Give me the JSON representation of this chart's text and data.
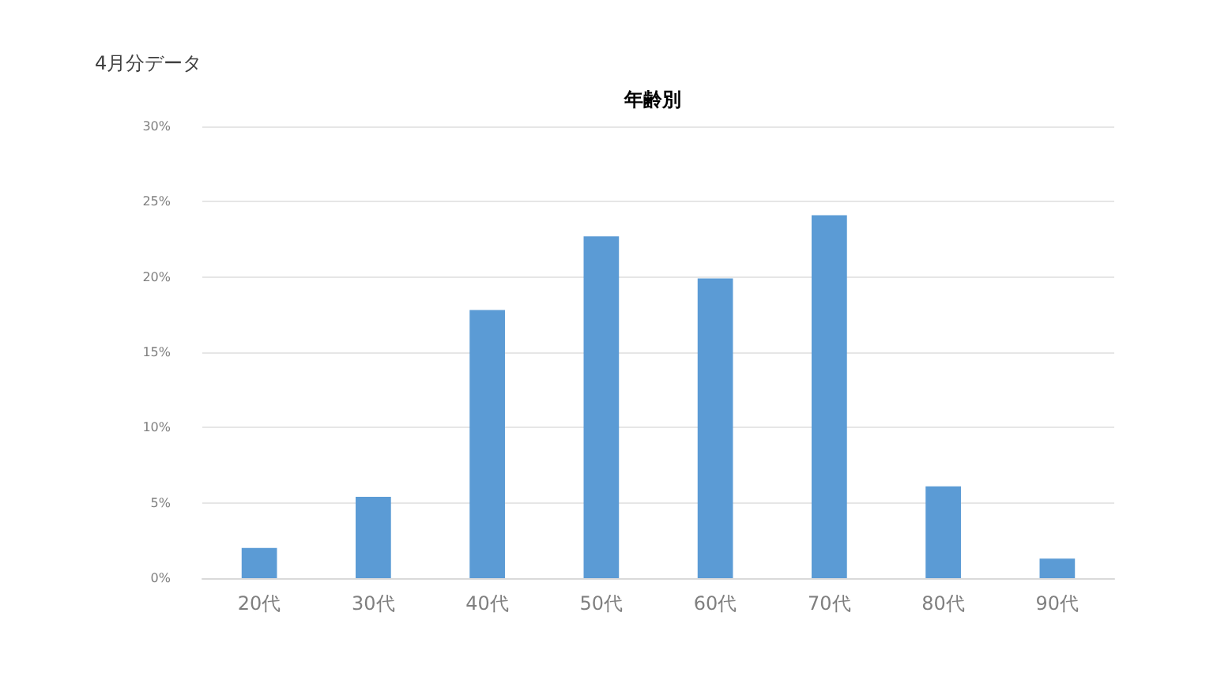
{
  "chart_data": {
    "type": "bar",
    "title": "年齢別",
    "subtitle": "4月分データ",
    "categories": [
      "20代",
      "30代",
      "40代",
      "50代",
      "60代",
      "70代",
      "80代",
      "90代"
    ],
    "values": [
      2.0,
      5.4,
      17.8,
      22.7,
      19.9,
      24.1,
      6.1,
      1.3
    ],
    "color": "#5b9bd5",
    "ylim": [
      0,
      30
    ],
    "yticks": [
      {
        "value": 0,
        "label": "0%"
      },
      {
        "value": 5,
        "label": "5%"
      },
      {
        "value": 10,
        "label": "10%"
      },
      {
        "value": 15,
        "label": "15%"
      },
      {
        "value": 20,
        "label": "20%"
      },
      {
        "value": 25,
        "label": "25%"
      },
      {
        "value": 30,
        "label": "30%"
      }
    ],
    "grid": "y"
  }
}
